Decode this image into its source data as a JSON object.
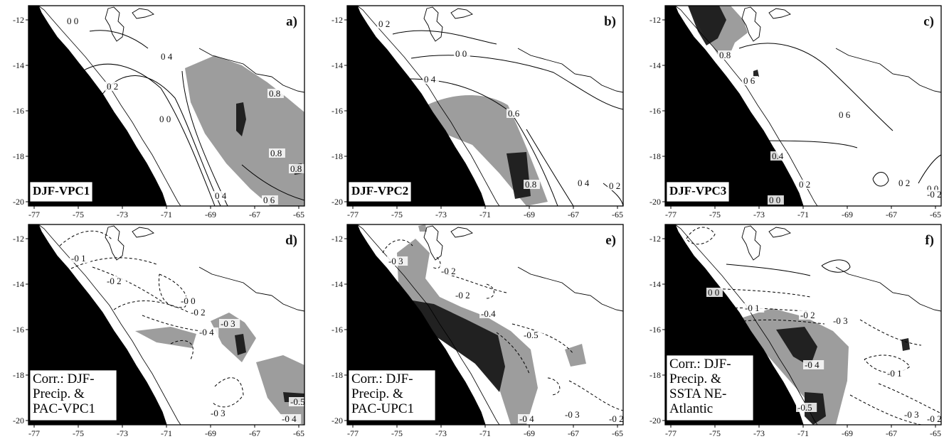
{
  "colors": {
    "ocean": "#000000",
    "shade_mid": "#8c8c8c",
    "shade_dark": "#1a1a1a",
    "land": "#ffffff"
  },
  "x_ticks": [
    "-77",
    "-75",
    "-73",
    "-71",
    "-69",
    "-67",
    "-65"
  ],
  "y_ticks": [
    "-12",
    "-14",
    "-16",
    "-18",
    "-20"
  ],
  "panels": [
    {
      "letter": "a)",
      "label_lines": [
        "DJF-VPC1"
      ],
      "label_style": "bold",
      "contour_labels": [
        "0 0",
        "0 4",
        "0 2",
        "0 0",
        "0.8",
        "0.8",
        "0.8",
        "0 4",
        "0 6"
      ]
    },
    {
      "letter": "b)",
      "label_lines": [
        "DJF-VPC2"
      ],
      "label_style": "bold",
      "contour_labels": [
        "0 2",
        "0 0",
        "0 4",
        "0.6",
        "0.8",
        "0 4",
        "0 2"
      ]
    },
    {
      "letter": "c)",
      "label_lines": [
        "DJF-VPC3"
      ],
      "label_style": "bold",
      "contour_labels": [
        "0.8",
        "0 6",
        "0 6",
        "0.4",
        "0 2",
        "0 2",
        "0 0",
        "0 0",
        "-0 2"
      ]
    },
    {
      "letter": "d)",
      "label_lines": [
        "Corr.: DJF-",
        "Precip. &",
        "PAC-VPC1"
      ],
      "label_style": "regular",
      "contour_labels": [
        "-0 1",
        "-0 2",
        "-0 0",
        "-0 2",
        "-0 3",
        "-0 4",
        "-0 3",
        "-0.5",
        "-0 4"
      ]
    },
    {
      "letter": "e)",
      "label_lines": [
        "Corr.: DJF-",
        "Precip. &",
        "PAC-UPC1"
      ],
      "label_style": "regular",
      "contour_labels": [
        "-0 3",
        "-0 2",
        "-0 2",
        "-0.4",
        "-0.5",
        "-0 3",
        "-0 2",
        "-0 4"
      ]
    },
    {
      "letter": "f)",
      "label_lines": [
        "Corr.: DJF-",
        "Precip. &",
        "SSTA NE-",
        "Atlantic"
      ],
      "label_style": "regular",
      "contour_labels": [
        "0 0",
        "-0 1",
        "-0 2",
        "-0 3",
        "-0 4",
        "-0.5",
        "-0 1",
        "-0 3",
        "-0 2"
      ]
    }
  ]
}
